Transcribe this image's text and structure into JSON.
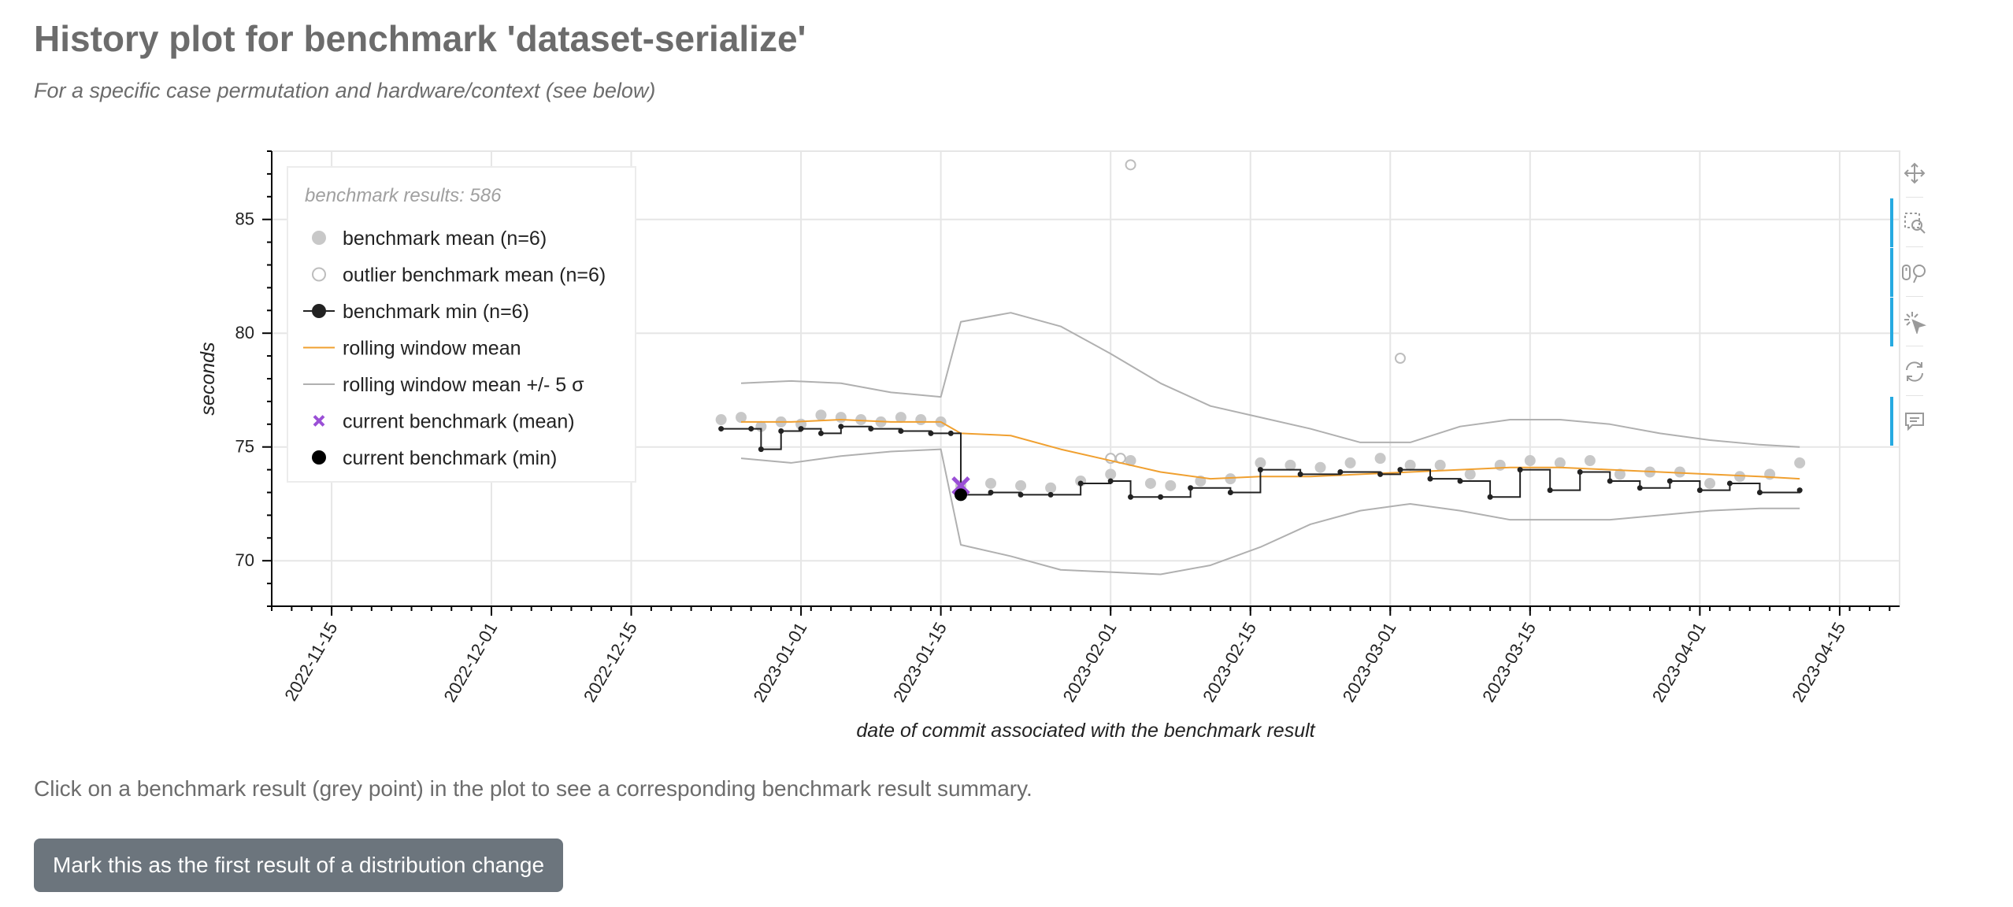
{
  "page": {
    "title": "History plot for benchmark 'dataset-serialize'",
    "subtitle": "For a specific case permutation and hardware/context (see below)",
    "hint": "Click on a benchmark result (grey point) in the plot to see a corresponding benchmark result summary.",
    "mark_button": "Mark this as the first result of a distribution change"
  },
  "colors": {
    "mean_points": "#c8c8c8",
    "outlier_points": "#bdbdbd",
    "min_line": "#222222",
    "rolling_mean": "#f0a030",
    "rolling_band": "#b0b0b0",
    "current_mean": "#9a4fd6",
    "current_min": "#000000",
    "toolbar_active": "#26aae1"
  },
  "toolbar": {
    "tools": [
      {
        "icon": "pan-icon",
        "active": false
      },
      {
        "icon": "box-zoom-icon",
        "active": true
      },
      {
        "icon": "wheel-zoom-icon",
        "active": true
      },
      {
        "icon": "tap-icon",
        "active": true
      },
      {
        "icon": "reset-icon",
        "active": false
      },
      {
        "icon": "hover-icon",
        "active": true
      }
    ]
  },
  "chart_data": {
    "type": "scatter",
    "title": "",
    "xlabel": "date of commit associated with the benchmark result",
    "ylabel": "seconds",
    "x_axis_type": "date",
    "xlim": [
      "2022-11-09",
      "2023-04-21"
    ],
    "ylim": [
      68,
      88
    ],
    "x_ticks": [
      "2022-11-15",
      "2022-12-01",
      "2022-12-15",
      "2023-01-01",
      "2023-01-15",
      "2023-02-01",
      "2023-02-15",
      "2023-03-01",
      "2023-03-15",
      "2023-04-01",
      "2023-04-15"
    ],
    "y_ticks": [
      70,
      75,
      80,
      85
    ],
    "grid": true,
    "legend": {
      "placement": "top-left",
      "title": "benchmark results: 586",
      "entries": [
        "benchmark mean (n=6)",
        "outlier benchmark mean (n=6)",
        "benchmark min (n=6)",
        "rolling window mean",
        "rolling window mean +/- 5 σ",
        "current benchmark (mean)",
        "current benchmark (min)"
      ]
    },
    "series": [
      {
        "name": "benchmark mean (n=6)",
        "x": [
          "2022-12-24",
          "2022-12-26",
          "2022-12-28",
          "2022-12-30",
          "2023-01-01",
          "2023-01-03",
          "2023-01-05",
          "2023-01-07",
          "2023-01-09",
          "2023-01-11",
          "2023-01-13",
          "2023-01-15",
          "2023-01-17",
          "2023-01-20",
          "2023-01-23",
          "2023-01-26",
          "2023-01-29",
          "2023-02-01",
          "2023-02-03",
          "2023-02-05",
          "2023-02-07",
          "2023-02-10",
          "2023-02-13",
          "2023-02-16",
          "2023-02-19",
          "2023-02-22",
          "2023-02-25",
          "2023-02-28",
          "2023-03-03",
          "2023-03-06",
          "2023-03-09",
          "2023-03-12",
          "2023-03-15",
          "2023-03-18",
          "2023-03-21",
          "2023-03-24",
          "2023-03-27",
          "2023-03-30",
          "2023-04-02",
          "2023-04-05",
          "2023-04-08",
          "2023-04-11"
        ],
        "values": [
          76.2,
          76.3,
          75.9,
          76.1,
          76.0,
          76.4,
          76.3,
          76.2,
          76.1,
          76.3,
          76.2,
          76.1,
          73.3,
          73.4,
          73.3,
          73.2,
          73.5,
          73.8,
          74.4,
          73.4,
          73.3,
          73.5,
          73.6,
          74.3,
          74.2,
          74.1,
          74.3,
          74.5,
          74.2,
          74.2,
          73.8,
          74.2,
          74.4,
          74.3,
          74.4,
          73.8,
          73.9,
          73.9,
          73.4,
          73.7,
          73.8,
          74.3
        ]
      },
      {
        "name": "outlier benchmark mean (n=6)",
        "x": [
          "2023-02-03",
          "2023-03-02",
          "2023-02-01",
          "2023-02-02"
        ],
        "values": [
          87.4,
          78.9,
          74.5,
          74.5
        ]
      },
      {
        "name": "benchmark min (n=6)",
        "x": [
          "2022-12-24",
          "2022-12-27",
          "2022-12-28",
          "2022-12-30",
          "2023-01-01",
          "2023-01-03",
          "2023-01-05",
          "2023-01-08",
          "2023-01-11",
          "2023-01-14",
          "2023-01-16",
          "2023-01-17",
          "2023-01-20",
          "2023-01-23",
          "2023-01-26",
          "2023-01-29",
          "2023-02-01",
          "2023-02-03",
          "2023-02-06",
          "2023-02-09",
          "2023-02-13",
          "2023-02-16",
          "2023-02-20",
          "2023-02-24",
          "2023-02-28",
          "2023-03-02",
          "2023-03-05",
          "2023-03-08",
          "2023-03-11",
          "2023-03-14",
          "2023-03-17",
          "2023-03-20",
          "2023-03-23",
          "2023-03-26",
          "2023-03-29",
          "2023-04-01",
          "2023-04-04",
          "2023-04-07",
          "2023-04-11"
        ],
        "values": [
          75.8,
          75.8,
          74.9,
          75.7,
          75.8,
          75.6,
          75.9,
          75.8,
          75.7,
          75.6,
          75.6,
          72.9,
          73.0,
          72.9,
          72.9,
          73.4,
          73.5,
          72.8,
          72.8,
          73.2,
          73.0,
          74.0,
          73.8,
          73.9,
          73.8,
          74.0,
          73.6,
          73.5,
          72.8,
          74.0,
          73.1,
          73.9,
          73.5,
          73.2,
          73.5,
          73.1,
          73.4,
          73.0,
          73.1
        ]
      },
      {
        "name": "rolling window mean",
        "x": [
          "2022-12-26",
          "2022-12-31",
          "2023-01-05",
          "2023-01-10",
          "2023-01-15",
          "2023-01-17",
          "2023-01-22",
          "2023-01-27",
          "2023-02-01",
          "2023-02-06",
          "2023-02-11",
          "2023-02-16",
          "2023-02-21",
          "2023-02-26",
          "2023-03-03",
          "2023-03-08",
          "2023-03-13",
          "2023-03-18",
          "2023-03-23",
          "2023-03-28",
          "2023-04-02",
          "2023-04-07",
          "2023-04-11"
        ],
        "values": [
          76.1,
          76.1,
          76.2,
          76.1,
          76.1,
          75.6,
          75.5,
          74.9,
          74.4,
          73.9,
          73.6,
          73.7,
          73.7,
          73.8,
          73.9,
          74.0,
          74.1,
          74.1,
          74.0,
          73.9,
          73.8,
          73.7,
          73.6
        ]
      },
      {
        "name": "rolling window mean +/- 5 σ (upper)",
        "x": [
          "2022-12-26",
          "2022-12-31",
          "2023-01-05",
          "2023-01-10",
          "2023-01-15",
          "2023-01-17",
          "2023-01-22",
          "2023-01-27",
          "2023-02-01",
          "2023-02-06",
          "2023-02-11",
          "2023-02-16",
          "2023-02-21",
          "2023-02-26",
          "2023-03-03",
          "2023-03-08",
          "2023-03-13",
          "2023-03-18",
          "2023-03-23",
          "2023-03-28",
          "2023-04-02",
          "2023-04-07",
          "2023-04-11"
        ],
        "values": [
          77.8,
          77.9,
          77.8,
          77.4,
          77.2,
          80.5,
          80.9,
          80.3,
          79.1,
          77.8,
          76.8,
          76.3,
          75.8,
          75.2,
          75.2,
          75.9,
          76.2,
          76.2,
          76.0,
          75.6,
          75.3,
          75.1,
          75.0
        ]
      },
      {
        "name": "rolling window mean +/- 5 σ (lower)",
        "x": [
          "2022-12-26",
          "2022-12-31",
          "2023-01-05",
          "2023-01-10",
          "2023-01-15",
          "2023-01-17",
          "2023-01-22",
          "2023-01-27",
          "2023-02-01",
          "2023-02-06",
          "2023-02-11",
          "2023-02-16",
          "2023-02-21",
          "2023-02-26",
          "2023-03-03",
          "2023-03-08",
          "2023-03-13",
          "2023-03-18",
          "2023-03-23",
          "2023-03-28",
          "2023-04-02",
          "2023-04-07",
          "2023-04-11"
        ],
        "values": [
          74.5,
          74.3,
          74.6,
          74.8,
          74.9,
          70.7,
          70.2,
          69.6,
          69.5,
          69.4,
          69.8,
          70.6,
          71.6,
          72.2,
          72.5,
          72.2,
          71.8,
          71.8,
          71.8,
          72.0,
          72.2,
          72.3,
          72.3
        ]
      },
      {
        "name": "current benchmark (mean)",
        "x": [
          "2023-01-17"
        ],
        "values": [
          73.3
        ]
      },
      {
        "name": "current benchmark (min)",
        "x": [
          "2023-01-17"
        ],
        "values": [
          72.9
        ]
      }
    ]
  }
}
